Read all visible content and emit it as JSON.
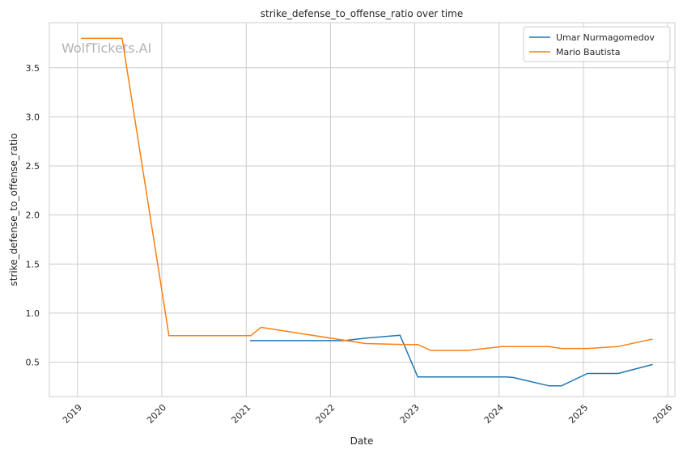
{
  "chart_data": {
    "type": "line",
    "title": "strike_defense_to_offense_ratio over time",
    "xlabel": "Date",
    "ylabel": "strike_defense_to_offense_ratio",
    "watermark": "WolfTickets.AI",
    "xlim": [
      "2018-09-01",
      "2026-02-01"
    ],
    "ylim": [
      0.15,
      3.96
    ],
    "x_ticks": [
      "2019",
      "2020",
      "2021",
      "2022",
      "2023",
      "2024",
      "2025",
      "2026"
    ],
    "y_ticks": [
      "0.5",
      "1.0",
      "1.5",
      "2.0",
      "2.5",
      "3.0",
      "3.5"
    ],
    "grid": true,
    "legend_position": "top-right",
    "series": [
      {
        "name": "Umar Nurmagomedov",
        "color": "#1f77b4",
        "points": [
          [
            "2021-01-20",
            0.72
          ],
          [
            "2022-03-01",
            0.72
          ],
          [
            "2022-06-01",
            0.745
          ],
          [
            "2022-10-29",
            0.775
          ],
          [
            "2023-01-14",
            0.35
          ],
          [
            "2024-02-01",
            0.35
          ],
          [
            "2024-03-01",
            0.345
          ],
          [
            "2024-08-03",
            0.26
          ],
          [
            "2024-09-28",
            0.26
          ],
          [
            "2025-01-18",
            0.385
          ],
          [
            "2025-05-31",
            0.385
          ],
          [
            "2025-10-25",
            0.475
          ]
        ]
      },
      {
        "name": "Mario Bautista",
        "color": "#ff7f0e",
        "points": [
          [
            "2019-01-19",
            3.8
          ],
          [
            "2019-07-13",
            3.8
          ],
          [
            "2020-02-01",
            0.77
          ],
          [
            "2021-01-20",
            0.77
          ],
          [
            "2021-03-06",
            0.855
          ],
          [
            "2022-06-01",
            0.69
          ],
          [
            "2022-11-19",
            0.68
          ],
          [
            "2023-01-14",
            0.68
          ],
          [
            "2023-03-11",
            0.62
          ],
          [
            "2023-08-19",
            0.62
          ],
          [
            "2024-01-13",
            0.66
          ],
          [
            "2024-08-03",
            0.66
          ],
          [
            "2024-09-28",
            0.64
          ],
          [
            "2025-01-18",
            0.64
          ],
          [
            "2025-05-31",
            0.66
          ],
          [
            "2025-10-25",
            0.735
          ]
        ]
      }
    ]
  }
}
